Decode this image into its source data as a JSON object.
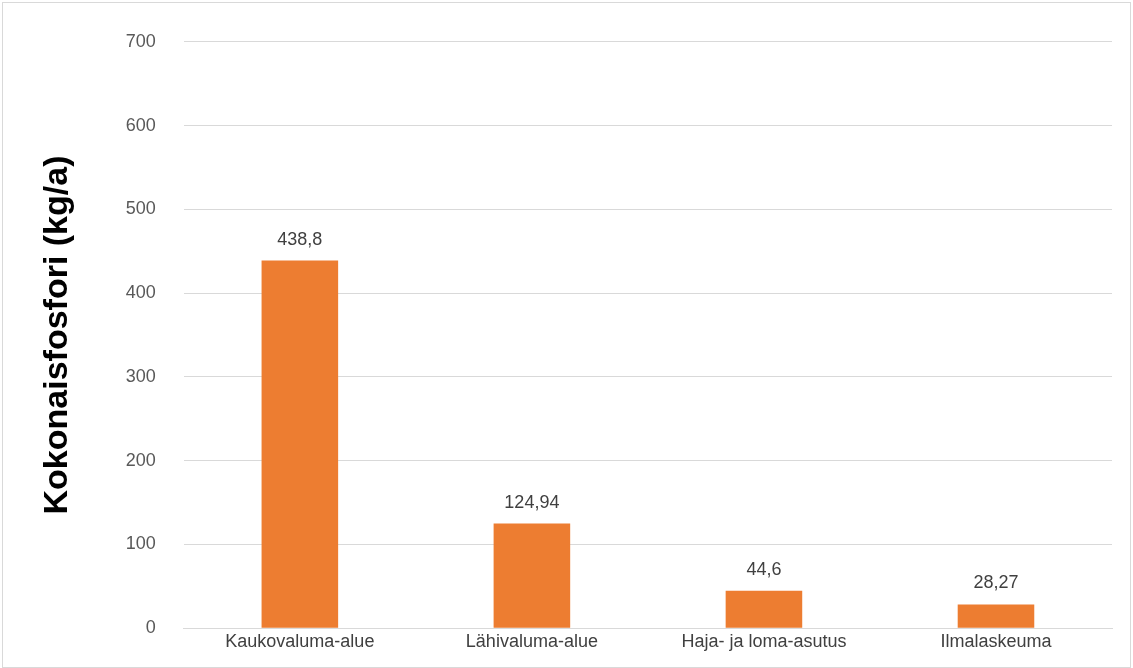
{
  "chart_data": {
    "type": "bar",
    "ylabel": "Kokonaisfosfori (kg/a)",
    "categories": [
      "Kaukovaluma-alue",
      "Lähivaluma-alue",
      "Haja- ja loma-asutus",
      "Ilmalaskeuma"
    ],
    "values": [
      438.8,
      124.94,
      44.6,
      28.27
    ],
    "value_labels": [
      "438,8",
      "124,94",
      "44,6",
      "28,27"
    ],
    "color": "#ed7d31",
    "ylim": [
      0,
      700
    ],
    "yticks": [
      0,
      100,
      200,
      300,
      400,
      500,
      600,
      700
    ],
    "grid": "y",
    "legend": false
  }
}
